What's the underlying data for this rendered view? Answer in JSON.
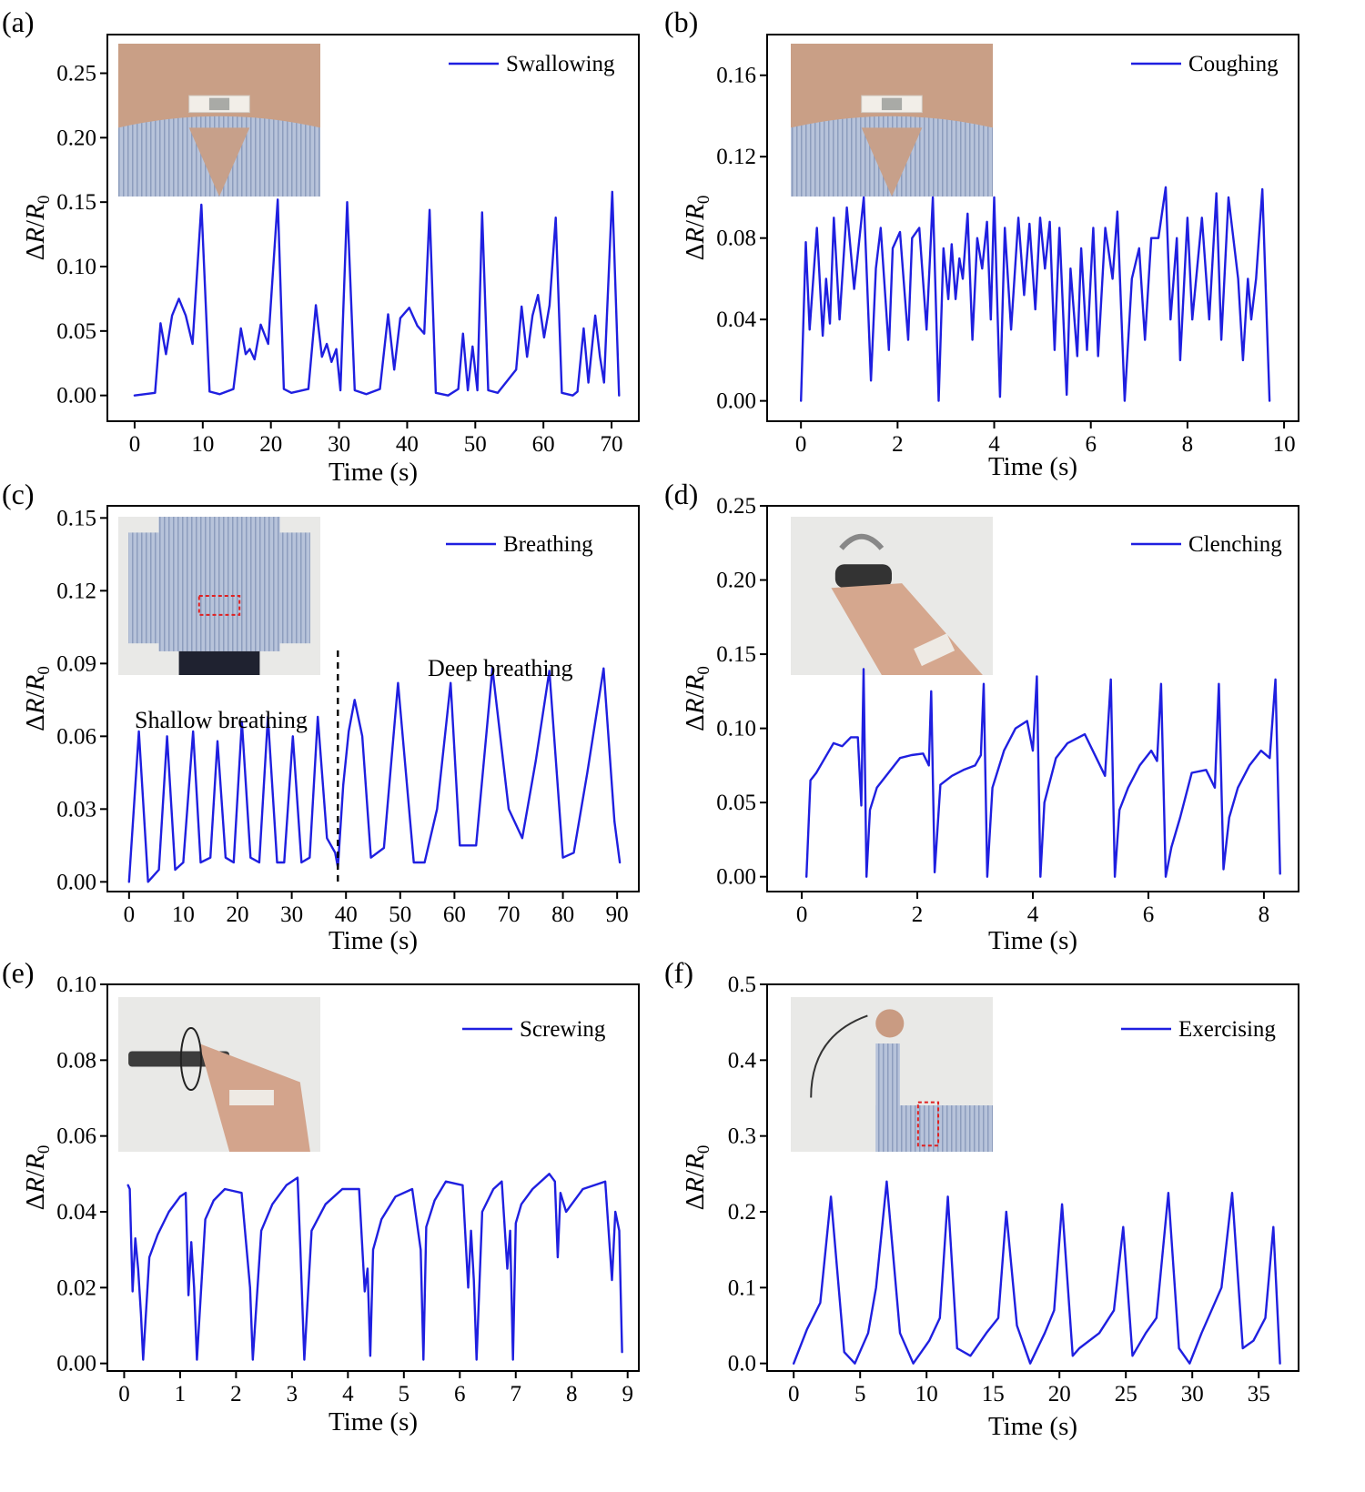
{
  "colors": {
    "series": "#1f1fe0",
    "annotation_box": "#e02020"
  },
  "chart_data": [
    {
      "panel": "(a)",
      "type": "line",
      "xlabel": "Time (s)",
      "ylabel": "ΔR/R0",
      "xlim": [
        -4,
        74
      ],
      "ylim": [
        -0.02,
        0.28
      ],
      "xticks": [
        0,
        10,
        20,
        30,
        40,
        50,
        60,
        70
      ],
      "xtick_labels": [
        "0",
        "10",
        "20",
        "30",
        "40",
        "50",
        "60",
        "70"
      ],
      "yticks": [
        0,
        0.05,
        0.1,
        0.15,
        0.2,
        0.25
      ],
      "ytick_labels": [
        "0.00",
        "0.05",
        "0.10",
        "0.15",
        "0.20",
        "0.25"
      ],
      "legend": "top-right",
      "grid": false,
      "inset_photo": "throat-sensor-photo",
      "series": [
        {
          "name": "Swallowing",
          "x": [
            0,
            3,
            3.8,
            4.6,
            5.5,
            6.5,
            7.5,
            8.5,
            9.8,
            11,
            12.5,
            14.5,
            15.6,
            16.3,
            16.9,
            17.6,
            18.5,
            19.6,
            21,
            21.9,
            23,
            25.5,
            26.6,
            27.5,
            28.2,
            28.9,
            29.6,
            30.2,
            31.2,
            32.3,
            34,
            36,
            37.2,
            38.1,
            39,
            40.3,
            41.5,
            42.5,
            43.3,
            44.2,
            46,
            47.5,
            48.2,
            48.9,
            49.6,
            50.3,
            51,
            51.9,
            53.3,
            56,
            56.8,
            57.6,
            58.4,
            59.2,
            60.1,
            60.9,
            61.8,
            62.7,
            64.3,
            65,
            65.9,
            66.6,
            67.6,
            68.3,
            68.9,
            70.1,
            71.1
          ],
          "y": [
            0,
            0.002,
            0.056,
            0.032,
            0.062,
            0.075,
            0.062,
            0.04,
            0.148,
            0.003,
            0.001,
            0.005,
            0.052,
            0.032,
            0.036,
            0.028,
            0.055,
            0.04,
            0.152,
            0.005,
            0.002,
            0.005,
            0.07,
            0.03,
            0.04,
            0.026,
            0.036,
            0.004,
            0.15,
            0.004,
            0.001,
            0.005,
            0.063,
            0.02,
            0.06,
            0.068,
            0.054,
            0.048,
            0.144,
            0.002,
            0,
            0.005,
            0.048,
            0.004,
            0.038,
            0.004,
            0.142,
            0.004,
            0.002,
            0.02,
            0.069,
            0.03,
            0.062,
            0.078,
            0.045,
            0.07,
            0.138,
            0.002,
            0,
            0.003,
            0.052,
            0.01,
            0.062,
            0.03,
            0.01,
            0.158,
            0
          ]
        }
      ]
    },
    {
      "panel": "(b)",
      "type": "line",
      "xlabel": "Time (s)",
      "ylabel": "ΔR/R0",
      "xlim": [
        -0.7,
        10.3
      ],
      "ylim": [
        -0.01,
        0.18
      ],
      "xticks": [
        0,
        2,
        4,
        6,
        8,
        10
      ],
      "xtick_labels": [
        "0",
        "2",
        "4",
        "6",
        "8",
        "10"
      ],
      "yticks": [
        0,
        0.04,
        0.08,
        0.12,
        0.16
      ],
      "ytick_labels": [
        "0.00",
        "0.04",
        "0.08",
        "0.12",
        "0.16"
      ],
      "legend": "top-right",
      "grid": false,
      "inset_photo": "throat-sensor-photo",
      "series": [
        {
          "name": "Coughing",
          "x": [
            0,
            0.1,
            0.18,
            0.33,
            0.45,
            0.52,
            0.6,
            0.68,
            0.8,
            0.95,
            1.1,
            1.3,
            1.45,
            1.55,
            1.65,
            1.82,
            1.9,
            2.05,
            2.22,
            2.3,
            2.45,
            2.6,
            2.73,
            2.85,
            2.95,
            3.05,
            3.12,
            3.2,
            3.28,
            3.35,
            3.45,
            3.55,
            3.65,
            3.75,
            3.85,
            3.93,
            4,
            4.12,
            4.22,
            4.35,
            4.5,
            4.62,
            4.73,
            4.85,
            4.95,
            5.05,
            5.15,
            5.25,
            5.35,
            5.5,
            5.58,
            5.72,
            5.8,
            5.92,
            6.05,
            6.15,
            6.3,
            6.45,
            6.55,
            6.7,
            6.85,
            7,
            7.12,
            7.25,
            7.4,
            7.55,
            7.65,
            7.78,
            7.85,
            8,
            8.1,
            8.3,
            8.45,
            8.6,
            8.7,
            8.85,
            9.05,
            9.15,
            9.25,
            9.32,
            9.42,
            9.55,
            9.7
          ],
          "y": [
            0,
            0.078,
            0.035,
            0.085,
            0.032,
            0.06,
            0.038,
            0.09,
            0.04,
            0.095,
            0.055,
            0.1,
            0.01,
            0.065,
            0.085,
            0.025,
            0.075,
            0.083,
            0.03,
            0.08,
            0.085,
            0.035,
            0.1,
            0,
            0.075,
            0.05,
            0.077,
            0.05,
            0.07,
            0.06,
            0.092,
            0.03,
            0.08,
            0.065,
            0.088,
            0.04,
            0.1,
            0.002,
            0.085,
            0.035,
            0.09,
            0.052,
            0.087,
            0.045,
            0.09,
            0.065,
            0.088,
            0.025,
            0.085,
            0.003,
            0.065,
            0.022,
            0.075,
            0.025,
            0.085,
            0.022,
            0.085,
            0.06,
            0.093,
            0,
            0.06,
            0.075,
            0.03,
            0.08,
            0.08,
            0.105,
            0.04,
            0.08,
            0.02,
            0.09,
            0.04,
            0.09,
            0.04,
            0.102,
            0.03,
            0.1,
            0.06,
            0.02,
            0.06,
            0.04,
            0.06,
            0.104,
            0
          ]
        }
      ]
    },
    {
      "panel": "(c)",
      "type": "line",
      "xlabel": "Time (s)",
      "ylabel": "ΔR/R0",
      "xlim": [
        -4,
        94
      ],
      "ylim": [
        -0.004,
        0.155
      ],
      "xticks": [
        0,
        10,
        20,
        30,
        40,
        50,
        60,
        70,
        80,
        90
      ],
      "xtick_labels": [
        "0",
        "10",
        "20",
        "30",
        "40",
        "50",
        "60",
        "70",
        "80",
        "90"
      ],
      "yticks": [
        0,
        0.03,
        0.06,
        0.09,
        0.12,
        0.15
      ],
      "ytick_labels": [
        "0.00",
        "0.03",
        "0.06",
        "0.09",
        "0.12",
        "0.15"
      ],
      "legend": "top-right",
      "grid": false,
      "inset_photo": "chest-sensor-photo",
      "annotations": [
        "Shallow breathing",
        "Deep breathing"
      ],
      "divider_x": 38.5,
      "series": [
        {
          "name": "Breathing",
          "x": [
            0,
            1.8,
            3.5,
            5.5,
            7,
            8.5,
            10,
            11.8,
            13.2,
            15,
            16.3,
            17.8,
            19.3,
            20.8,
            22.4,
            24,
            25.6,
            27.3,
            28.6,
            30.2,
            31.8,
            33.3,
            34.8,
            36.5,
            38,
            38.5,
            39.5,
            40.5,
            41.6,
            43,
            44.6,
            47,
            49.6,
            52.5,
            54.5,
            56.8,
            59.3,
            61,
            64,
            67,
            70,
            72.5,
            75,
            77.5,
            80,
            82,
            84.5,
            87.5,
            89.5,
            90.5
          ],
          "y": [
            0,
            0.062,
            0,
            0.005,
            0.06,
            0.005,
            0.008,
            0.062,
            0.008,
            0.01,
            0.058,
            0.01,
            0.008,
            0.066,
            0.01,
            0.008,
            0.068,
            0.008,
            0.008,
            0.06,
            0.008,
            0.01,
            0.068,
            0.018,
            0.012,
            0.006,
            0.04,
            0.062,
            0.075,
            0.06,
            0.01,
            0.014,
            0.082,
            0.008,
            0.008,
            0.03,
            0.082,
            0.015,
            0.015,
            0.088,
            0.03,
            0.018,
            0.05,
            0.087,
            0.01,
            0.012,
            0.045,
            0.088,
            0.025,
            0.008
          ]
        }
      ]
    },
    {
      "panel": "(d)",
      "type": "line",
      "xlabel": "Time (s)",
      "ylabel": "ΔR/R0",
      "xlim": [
        -0.6,
        8.6
      ],
      "ylim": [
        -0.01,
        0.25
      ],
      "xticks": [
        0,
        2,
        4,
        6,
        8
      ],
      "xtick_labels": [
        "0",
        "2",
        "4",
        "6",
        "8"
      ],
      "yticks": [
        0,
        0.05,
        0.1,
        0.15,
        0.2,
        0.25
      ],
      "ytick_labels": [
        "0.00",
        "0.05",
        "0.10",
        "0.15",
        "0.20",
        "0.25"
      ],
      "legend": "top-right",
      "grid": false,
      "inset_photo": "hand-grip-photo",
      "series": [
        {
          "name": "Clenching",
          "x": [
            0.08,
            0.15,
            0.25,
            0.4,
            0.55,
            0.7,
            0.85,
            0.97,
            1.03,
            1.07,
            1.12,
            1.18,
            1.3,
            1.5,
            1.7,
            1.9,
            2.1,
            2.2,
            2.24,
            2.3,
            2.4,
            2.6,
            2.8,
            3,
            3.1,
            3.15,
            3.21,
            3.3,
            3.5,
            3.7,
            3.9,
            4,
            4.07,
            4.13,
            4.2,
            4.4,
            4.6,
            4.9,
            5.1,
            5.25,
            5.35,
            5.42,
            5.5,
            5.65,
            5.85,
            6.05,
            6.15,
            6.22,
            6.3,
            6.4,
            6.55,
            6.75,
            7,
            7.15,
            7.22,
            7.3,
            7.4,
            7.55,
            7.75,
            7.95,
            8.1,
            8.2,
            8.28
          ],
          "y": [
            0,
            0.065,
            0.07,
            0.08,
            0.09,
            0.088,
            0.094,
            0.094,
            0.048,
            0.14,
            0,
            0.045,
            0.06,
            0.07,
            0.08,
            0.082,
            0.083,
            0.075,
            0.125,
            0.003,
            0.062,
            0.068,
            0.072,
            0.075,
            0.082,
            0.13,
            0,
            0.06,
            0.085,
            0.1,
            0.105,
            0.085,
            0.135,
            0,
            0.05,
            0.08,
            0.09,
            0.096,
            0.08,
            0.068,
            0.133,
            0,
            0.045,
            0.06,
            0.075,
            0.085,
            0.078,
            0.13,
            0,
            0.02,
            0.04,
            0.07,
            0.072,
            0.06,
            0.13,
            0.005,
            0.04,
            0.06,
            0.075,
            0.085,
            0.08,
            0.133,
            0.002
          ]
        }
      ]
    },
    {
      "panel": "(e)",
      "type": "line",
      "xlabel": "Time (s)",
      "ylabel": "ΔR/R0",
      "xlim": [
        -0.3,
        9.2
      ],
      "ylim": [
        -0.002,
        0.1
      ],
      "xticks": [
        0,
        1,
        2,
        3,
        4,
        5,
        6,
        7,
        8,
        9
      ],
      "xtick_labels": [
        "0",
        "1",
        "2",
        "3",
        "4",
        "5",
        "6",
        "7",
        "8",
        "9"
      ],
      "yticks": [
        0,
        0.02,
        0.04,
        0.06,
        0.08,
        0.1
      ],
      "ytick_labels": [
        "0.00",
        "0.02",
        "0.04",
        "0.06",
        "0.08",
        "0.10"
      ],
      "legend": "top-right",
      "grid": false,
      "inset_photo": "screwdriver-photo",
      "series": [
        {
          "name": "Screwing",
          "x": [
            0.07,
            0.1,
            0.15,
            0.2,
            0.25,
            0.3,
            0.34,
            0.45,
            0.6,
            0.8,
            1,
            1.1,
            1.15,
            1.2,
            1.25,
            1.3,
            1.45,
            1.6,
            1.8,
            2.1,
            2.25,
            2.3,
            2.45,
            2.65,
            2.9,
            3.1,
            3.15,
            3.22,
            3.35,
            3.6,
            3.9,
            4.2,
            4.3,
            4.35,
            4.4,
            4.45,
            4.6,
            4.85,
            5.15,
            5.3,
            5.35,
            5.4,
            5.55,
            5.75,
            6.05,
            6.15,
            6.2,
            6.25,
            6.3,
            6.4,
            6.6,
            6.75,
            6.85,
            6.9,
            6.95,
            7,
            7.1,
            7.3,
            7.6,
            7.7,
            7.75,
            7.8,
            7.9,
            8.2,
            8.6,
            8.72,
            8.78,
            8.85,
            8.9
          ],
          "y": [
            0.047,
            0.046,
            0.019,
            0.033,
            0.025,
            0.013,
            0.001,
            0.028,
            0.034,
            0.04,
            0.044,
            0.045,
            0.018,
            0.032,
            0.02,
            0.001,
            0.038,
            0.043,
            0.046,
            0.045,
            0.02,
            0.001,
            0.035,
            0.042,
            0.047,
            0.049,
            0.03,
            0.001,
            0.035,
            0.042,
            0.046,
            0.046,
            0.019,
            0.025,
            0.002,
            0.03,
            0.038,
            0.044,
            0.046,
            0.03,
            0.001,
            0.036,
            0.043,
            0.048,
            0.047,
            0.02,
            0.035,
            0.022,
            0.001,
            0.04,
            0.046,
            0.048,
            0.025,
            0.035,
            0.001,
            0.037,
            0.042,
            0.046,
            0.05,
            0.048,
            0.028,
            0.045,
            0.04,
            0.046,
            0.048,
            0.022,
            0.04,
            0.035,
            0.003
          ]
        }
      ]
    },
    {
      "panel": "(f)",
      "type": "line",
      "xlabel": "Time (s)",
      "ylabel": "ΔR/R0",
      "xlim": [
        -2,
        38
      ],
      "ylim": [
        -0.01,
        0.5
      ],
      "xticks": [
        0,
        5,
        10,
        15,
        20,
        25,
        30,
        35
      ],
      "xtick_labels": [
        "0",
        "5",
        "10",
        "15",
        "20",
        "25",
        "30",
        "35"
      ],
      "yticks": [
        0,
        0.1,
        0.2,
        0.3,
        0.4,
        0.5
      ],
      "ytick_labels": [
        "0.0",
        "0.1",
        "0.2",
        "0.3",
        "0.4",
        "0.5"
      ],
      "legend": "top-right",
      "grid": false,
      "inset_photo": "arm-exercise-photo",
      "series": [
        {
          "name": "Exercising",
          "x": [
            0,
            1,
            2,
            2.8,
            3.8,
            4.6,
            5.6,
            6.2,
            7,
            8,
            9,
            10.2,
            11,
            11.6,
            12.3,
            13.3,
            14.5,
            15.4,
            16,
            16.8,
            17.8,
            18.9,
            19.6,
            20.2,
            21,
            21.5,
            23,
            24.1,
            24.8,
            25.5,
            26.5,
            27.3,
            28.2,
            29,
            29.8,
            30.7,
            32.2,
            33,
            33.8,
            34.6,
            35.5,
            36.1,
            36.6
          ],
          "y": [
            0,
            0.045,
            0.08,
            0.22,
            0.015,
            0,
            0.04,
            0.1,
            0.24,
            0.04,
            0,
            0.03,
            0.06,
            0.22,
            0.02,
            0.01,
            0.04,
            0.06,
            0.2,
            0.05,
            0,
            0.04,
            0.07,
            0.21,
            0.01,
            0.02,
            0.04,
            0.07,
            0.18,
            0.01,
            0.04,
            0.06,
            0.225,
            0.02,
            0,
            0.04,
            0.1,
            0.225,
            0.02,
            0.03,
            0.06,
            0.18,
            0
          ]
        }
      ]
    }
  ]
}
